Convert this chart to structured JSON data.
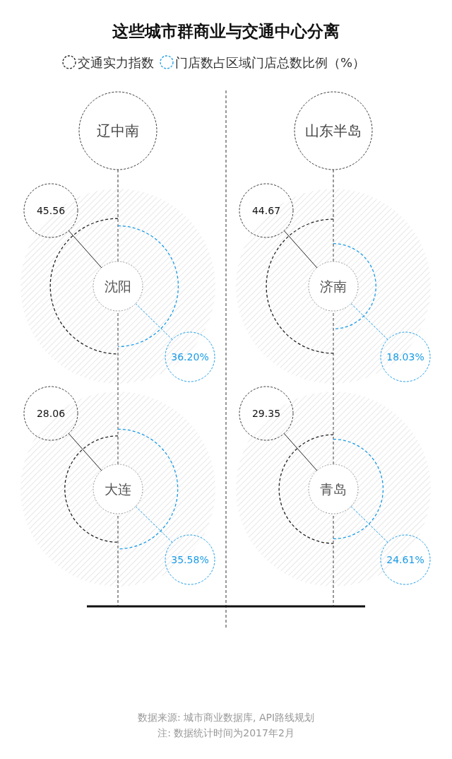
{
  "chart_data": {
    "type": "other",
    "title": "这些城市群商业与交通中心分离",
    "legend": "top",
    "categories": [
      "沈阳",
      "大连",
      "济南",
      "青岛"
    ],
    "series": [
      {
        "name": "交通实力指数",
        "color": "#222222",
        "values": [
          45.56,
          28.06,
          44.67,
          29.35
        ],
        "value_labels": [
          "45.56",
          "28.06",
          "44.67",
          "29.35"
        ]
      },
      {
        "name": "门店数占区域门店总数比例（%）",
        "color": "#1a9be6",
        "values": [
          36.2,
          35.58,
          18.03,
          24.61
        ],
        "value_labels": [
          "36.20%",
          "35.58%",
          "18.03%",
          "24.61%"
        ]
      }
    ],
    "annotations": [
      "辽中南",
      "山东半岛",
      "数据来源: 城市商业数据库, API路线规划",
      "注: 数据统计时间为2017年2月"
    ]
  }
}
